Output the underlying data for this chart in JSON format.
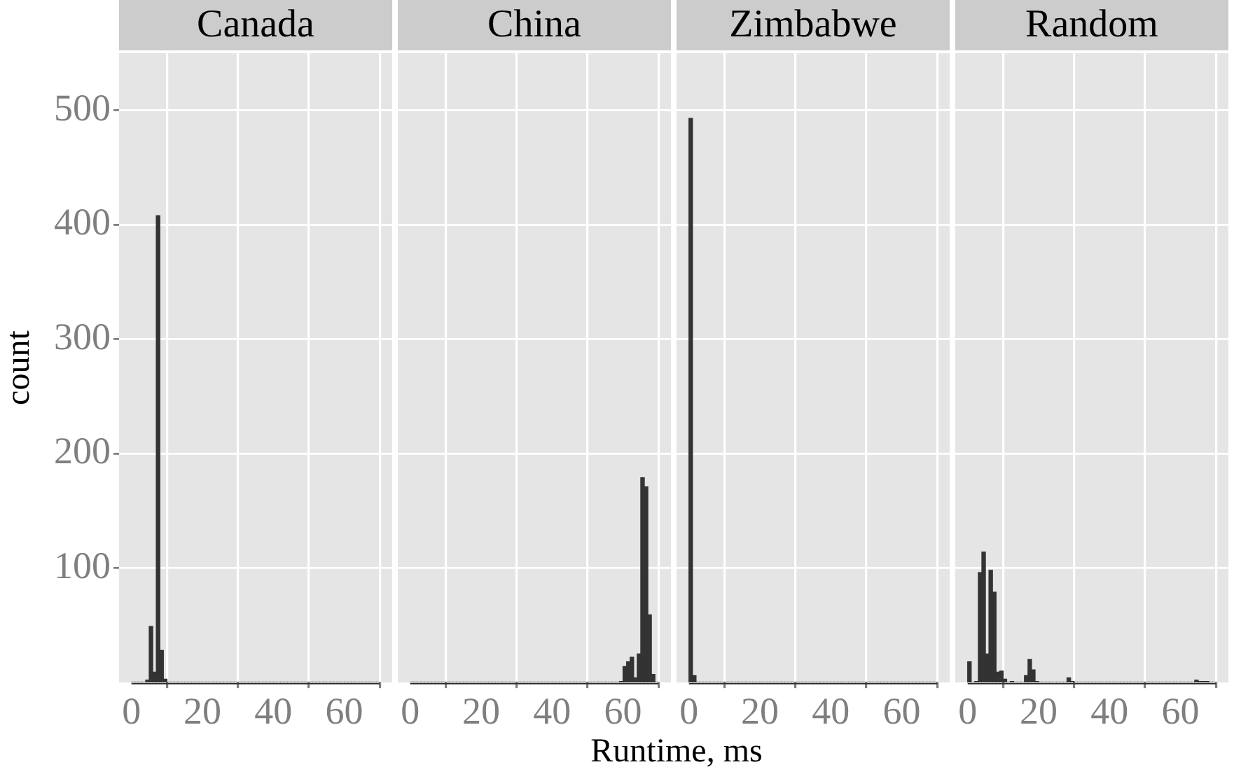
{
  "chart_data": [
    {
      "type": "histogram",
      "title": "Canada",
      "xlabel": "Runtime, ms",
      "ylabel": "count",
      "color": "#333333",
      "grid": true,
      "legend": false,
      "bins": [
        0,
        1,
        2,
        3,
        4,
        5,
        6,
        7,
        8,
        9,
        10,
        11,
        12,
        13,
        14,
        15,
        16,
        17,
        18,
        19,
        20,
        21,
        22,
        23,
        24,
        25,
        26,
        27,
        28,
        29,
        30,
        31,
        32,
        33,
        34,
        35,
        36,
        37,
        38,
        39,
        40,
        41,
        42,
        43,
        44,
        45,
        46,
        47,
        48,
        49,
        50,
        51,
        52,
        53,
        54,
        55,
        56,
        57,
        58,
        59,
        60,
        61,
        62,
        63,
        64,
        65,
        66,
        67,
        68,
        69,
        70
      ],
      "values": [
        0,
        0,
        0,
        0,
        2,
        49,
        9,
        408,
        28,
        3,
        0,
        0,
        0,
        0,
        0,
        0,
        0,
        0,
        0,
        0,
        0,
        0,
        0,
        0,
        0,
        0,
        0,
        0,
        0,
        0,
        0,
        0,
        0,
        0,
        0,
        0,
        0,
        0,
        0,
        0,
        0,
        0,
        0,
        0,
        0,
        0,
        0,
        0,
        0,
        0,
        0,
        0,
        0,
        0,
        0,
        0,
        0,
        0,
        0,
        0,
        0,
        0,
        0,
        0,
        0,
        0,
        0,
        0,
        0,
        0
      ],
      "xlim": [
        -3.5,
        73.5
      ],
      "xticks": [
        0,
        20,
        40,
        60
      ],
      "ylim": [
        0,
        550
      ],
      "yticks": [
        100,
        200,
        300,
        400,
        500
      ]
    },
    {
      "type": "histogram",
      "title": "China",
      "color": "#333333",
      "grid": true,
      "legend": false,
      "tick_labels": "x",
      "bins": [
        0,
        1,
        2,
        3,
        4,
        5,
        6,
        7,
        8,
        9,
        10,
        11,
        12,
        13,
        14,
        15,
        16,
        17,
        18,
        19,
        20,
        21,
        22,
        23,
        24,
        25,
        26,
        27,
        28,
        29,
        30,
        31,
        32,
        33,
        34,
        35,
        36,
        37,
        38,
        39,
        40,
        41,
        42,
        43,
        44,
        45,
        46,
        47,
        48,
        49,
        50,
        51,
        52,
        53,
        54,
        55,
        56,
        57,
        58,
        59,
        60,
        61,
        62,
        63,
        64,
        65,
        66,
        67,
        68,
        69,
        70
      ],
      "values": [
        0,
        0,
        0,
        0,
        0,
        0,
        0,
        0,
        0,
        0,
        0,
        0,
        0,
        0,
        0,
        0,
        0,
        0,
        0,
        0,
        0,
        0,
        0,
        0,
        0,
        0,
        0,
        0,
        0,
        0,
        0,
        0,
        0,
        0,
        0,
        0,
        0,
        0,
        0,
        0,
        0,
        0,
        0,
        0,
        0,
        0,
        0,
        0,
        0,
        0,
        0,
        0,
        0,
        0,
        0,
        0,
        0,
        0,
        0,
        1,
        14,
        18,
        22,
        4,
        25,
        179,
        171,
        59,
        7,
        0
      ],
      "xlim": [
        -3.5,
        73.5
      ],
      "xticks": [
        0,
        20,
        40,
        60
      ],
      "ylim": [
        0,
        550
      ],
      "yticks": [
        100,
        200,
        300,
        400,
        500
      ]
    },
    {
      "type": "histogram",
      "title": "Zimbabwe",
      "color": "#333333",
      "grid": true,
      "legend": false,
      "tick_labels": "x",
      "bins": [
        0,
        1,
        2,
        3,
        4,
        5,
        6,
        7,
        8,
        9,
        10,
        11,
        12,
        13,
        14,
        15,
        16,
        17,
        18,
        19,
        20,
        21,
        22,
        23,
        24,
        25,
        26,
        27,
        28,
        29,
        30,
        31,
        32,
        33,
        34,
        35,
        36,
        37,
        38,
        39,
        40,
        41,
        42,
        43,
        44,
        45,
        46,
        47,
        48,
        49,
        50,
        51,
        52,
        53,
        54,
        55,
        56,
        57,
        58,
        59,
        60,
        61,
        62,
        63,
        64,
        65,
        66,
        67,
        68,
        69,
        70
      ],
      "values": [
        493,
        6,
        0,
        0,
        0,
        0,
        0,
        0,
        0,
        0,
        0,
        0,
        0,
        0,
        0,
        0,
        0,
        0,
        0,
        0,
        0,
        0,
        0,
        0,
        0,
        0,
        0,
        0,
        0,
        0,
        0,
        0,
        0,
        0,
        0,
        0,
        0,
        0,
        0,
        0,
        0,
        0,
        0,
        0,
        0,
        0,
        0,
        0,
        0,
        0,
        0,
        0,
        0,
        0,
        0,
        0,
        0,
        0,
        0,
        0,
        0,
        0,
        0,
        0,
        0,
        0,
        0,
        0,
        0,
        0
      ],
      "xlim": [
        -3.5,
        73.5
      ],
      "xticks": [
        0,
        20,
        40,
        60
      ],
      "ylim": [
        0,
        550
      ],
      "yticks": [
        100,
        200,
        300,
        400,
        500
      ]
    },
    {
      "type": "histogram",
      "title": "Random",
      "color": "#333333",
      "grid": true,
      "legend": false,
      "tick_labels": "x",
      "bins": [
        0,
        1,
        2,
        3,
        4,
        5,
        6,
        7,
        8,
        9,
        10,
        11,
        12,
        13,
        14,
        15,
        16,
        17,
        18,
        19,
        20,
        21,
        22,
        23,
        24,
        25,
        26,
        27,
        28,
        29,
        30,
        31,
        32,
        33,
        34,
        35,
        36,
        37,
        38,
        39,
        40,
        41,
        42,
        43,
        44,
        45,
        46,
        47,
        48,
        49,
        50,
        51,
        52,
        53,
        54,
        55,
        56,
        57,
        58,
        59,
        60,
        61,
        62,
        63,
        64,
        65,
        66,
        67,
        68,
        69,
        70
      ],
      "values": [
        18,
        0,
        1,
        96,
        114,
        25,
        98,
        79,
        9,
        10,
        3,
        0,
        1,
        0,
        0,
        0,
        6,
        20,
        11,
        1,
        0,
        0,
        0,
        0,
        0,
        0,
        0,
        0,
        4,
        1,
        0,
        0,
        0,
        0,
        0,
        0,
        0,
        0,
        0,
        0,
        0,
        0,
        0,
        0,
        0,
        0,
        0,
        0,
        0,
        0,
        0,
        0,
        0,
        0,
        0,
        0,
        0,
        0,
        0,
        0,
        0,
        0,
        0,
        0,
        2,
        1,
        1,
        1,
        0,
        0
      ],
      "xlim": [
        -3.5,
        73.5
      ],
      "xticks": [
        0,
        20,
        40,
        60
      ],
      "ylim": [
        0,
        550
      ],
      "yticks": [
        100,
        200,
        300,
        400,
        500
      ]
    }
  ]
}
